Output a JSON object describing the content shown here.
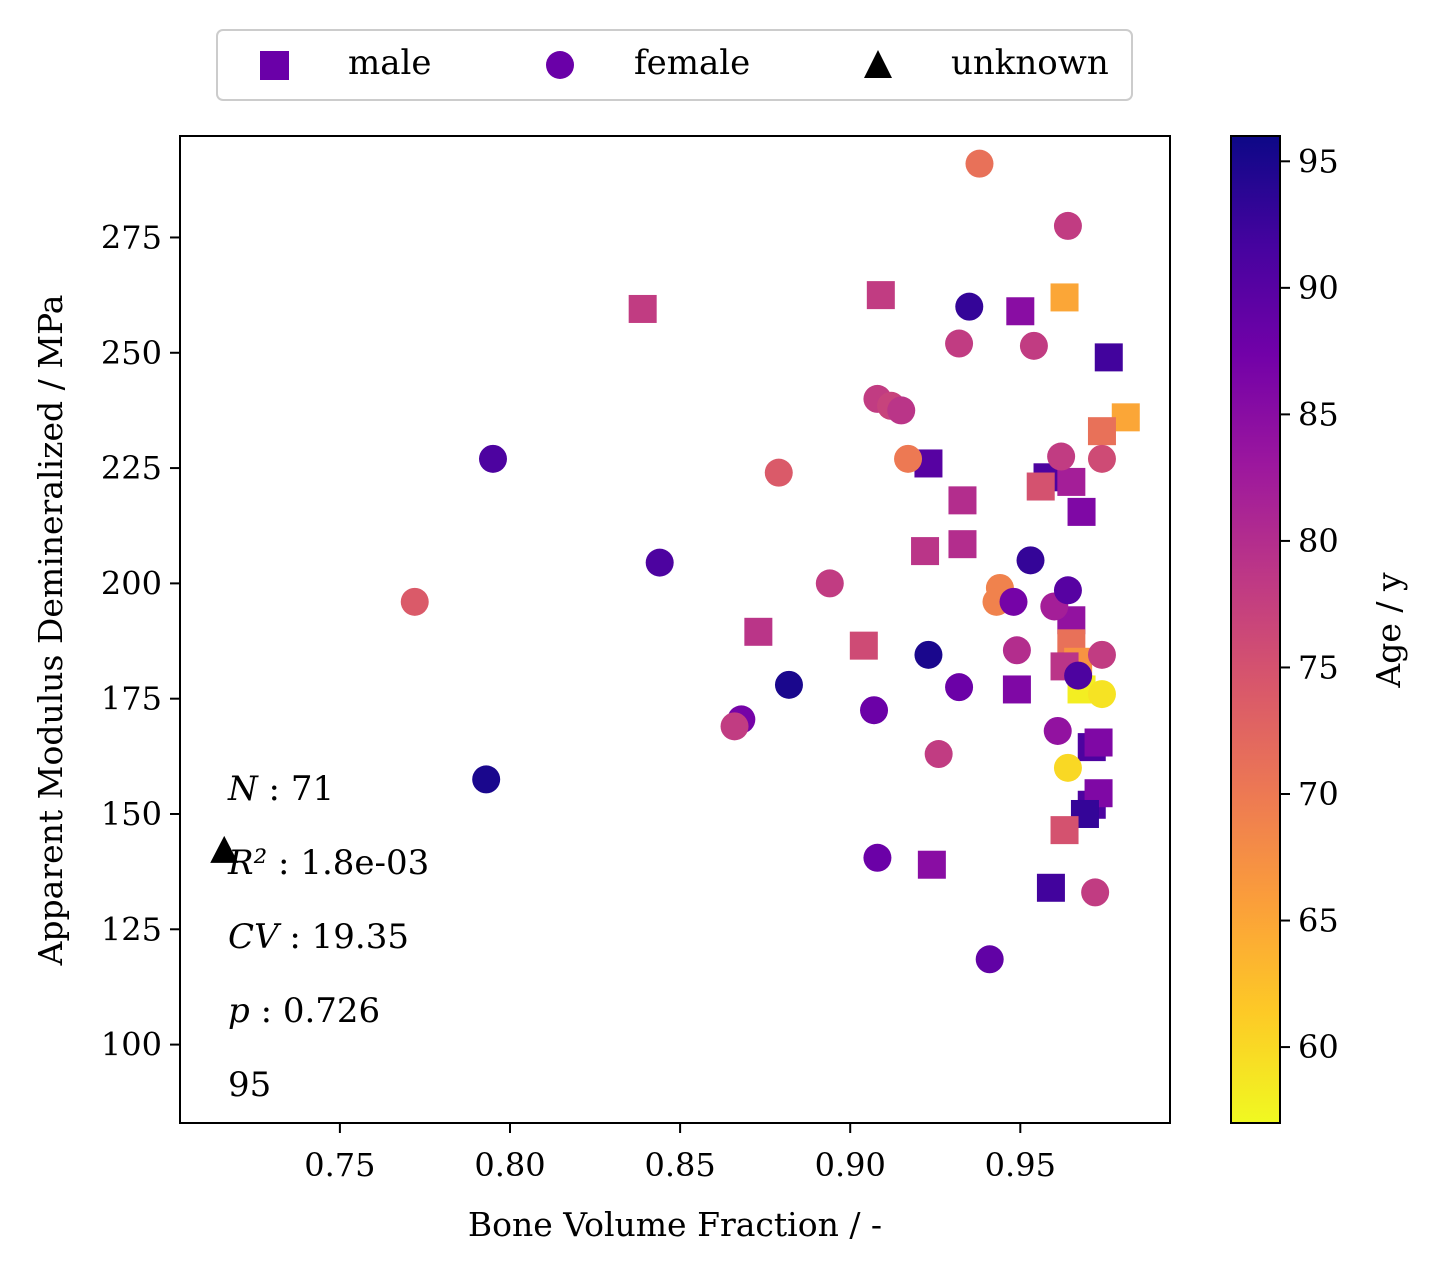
{
  "chart_data": {
    "type": "scatter",
    "title": "",
    "xlabel": "Bone Volume Fraction / -",
    "ylabel": "Apparent Modulus Demineralized / MPa",
    "xlim": [
      0.703,
      0.994
    ],
    "ylim": [
      83,
      297
    ],
    "x_ticks": [
      0.75,
      0.8,
      0.85,
      0.9,
      0.95
    ],
    "x_tick_labels": [
      "0.75",
      "0.80",
      "0.85",
      "0.90",
      "0.95"
    ],
    "y_ticks": [
      100,
      125,
      150,
      175,
      200,
      225,
      250,
      275
    ],
    "y_tick_labels": [
      "100",
      "125",
      "150",
      "175",
      "200",
      "225",
      "250",
      "275"
    ],
    "grid": false,
    "legend": {
      "placement": "top-center, outside plot",
      "entries": [
        {
          "label": "male",
          "marker": "square",
          "color": "#6a00a8"
        },
        {
          "label": "female",
          "marker": "circle",
          "color": "#6a00a8"
        },
        {
          "label": "unknown",
          "marker": "triangle",
          "color": "#000000"
        }
      ]
    },
    "colorbar": {
      "label": "Age / y",
      "colormap": "plasma",
      "range": [
        57,
        96
      ],
      "ticks": [
        60,
        65,
        70,
        75,
        80,
        85,
        90,
        95
      ],
      "tick_labels": [
        "60",
        "65",
        "70",
        "75",
        "80",
        "85",
        "90",
        "95"
      ],
      "stops": [
        "#f0f921",
        "#fdca26",
        "#fb9f3a",
        "#ed7953",
        "#d8576b",
        "#bd3786",
        "#9c179e",
        "#7201a8",
        "#46039f",
        "#0d0887"
      ]
    },
    "annotations": [
      {
        "label": "N",
        "sep": " : ",
        "value": "71"
      },
      {
        "label": "R²",
        "sep": " : ",
        "value": "1.8e-03"
      },
      {
        "label": "CV",
        "sep": " : ",
        "value": "19.35"
      },
      {
        "label": "p",
        "sep": " : ",
        "value": "0.726"
      },
      {
        "label": "",
        "sep": "",
        "value": "95"
      }
    ],
    "points": [
      {
        "x": 0.839,
        "y": 259.5,
        "age": 78,
        "group": "male"
      },
      {
        "x": 0.909,
        "y": 262.5,
        "age": 78,
        "group": "male"
      },
      {
        "x": 0.95,
        "y": 259,
        "age": 85,
        "group": "male"
      },
      {
        "x": 0.963,
        "y": 262,
        "age": 65,
        "group": "male"
      },
      {
        "x": 0.976,
        "y": 249,
        "age": 92,
        "group": "male"
      },
      {
        "x": 0.981,
        "y": 236,
        "age": 65,
        "group": "male"
      },
      {
        "x": 0.974,
        "y": 233,
        "age": 71,
        "group": "male"
      },
      {
        "x": 0.923,
        "y": 226,
        "age": 90,
        "group": "male"
      },
      {
        "x": 0.958,
        "y": 223,
        "age": 91,
        "group": "male"
      },
      {
        "x": 0.965,
        "y": 222,
        "age": 82,
        "group": "male"
      },
      {
        "x": 0.956,
        "y": 221,
        "age": 75,
        "group": "male"
      },
      {
        "x": 0.933,
        "y": 218,
        "age": 80,
        "group": "male"
      },
      {
        "x": 0.968,
        "y": 215.5,
        "age": 86,
        "group": "male"
      },
      {
        "x": 0.933,
        "y": 208.5,
        "age": 80,
        "group": "male"
      },
      {
        "x": 0.922,
        "y": 207,
        "age": 79,
        "group": "male"
      },
      {
        "x": 0.965,
        "y": 192,
        "age": 84,
        "group": "male"
      },
      {
        "x": 0.873,
        "y": 189.5,
        "age": 79,
        "group": "male"
      },
      {
        "x": 0.904,
        "y": 186.5,
        "age": 76,
        "group": "male"
      },
      {
        "x": 0.965,
        "y": 187,
        "age": 71,
        "group": "male"
      },
      {
        "x": 0.967,
        "y": 183,
        "age": 67,
        "group": "male"
      },
      {
        "x": 0.963,
        "y": 182,
        "age": 79,
        "group": "male"
      },
      {
        "x": 0.949,
        "y": 177,
        "age": 86,
        "group": "male"
      },
      {
        "x": 0.968,
        "y": 177,
        "age": 58,
        "group": "male"
      },
      {
        "x": 0.971,
        "y": 164.5,
        "age": 91,
        "group": "male"
      },
      {
        "x": 0.973,
        "y": 165.5,
        "age": 86,
        "group": "male"
      },
      {
        "x": 0.971,
        "y": 152,
        "age": 91,
        "group": "male"
      },
      {
        "x": 0.973,
        "y": 154.5,
        "age": 86,
        "group": "male"
      },
      {
        "x": 0.969,
        "y": 150,
        "age": 93,
        "group": "male"
      },
      {
        "x": 0.963,
        "y": 146.5,
        "age": 75,
        "group": "male"
      },
      {
        "x": 0.924,
        "y": 139,
        "age": 85,
        "group": "male"
      },
      {
        "x": 0.959,
        "y": 134,
        "age": 92,
        "group": "male"
      },
      {
        "x": 0.938,
        "y": 291,
        "age": 71,
        "group": "female"
      },
      {
        "x": 0.964,
        "y": 277.5,
        "age": 78,
        "group": "female"
      },
      {
        "x": 0.935,
        "y": 260,
        "age": 93,
        "group": "female"
      },
      {
        "x": 0.932,
        "y": 252,
        "age": 78,
        "group": "female"
      },
      {
        "x": 0.954,
        "y": 251.5,
        "age": 78,
        "group": "female"
      },
      {
        "x": 0.908,
        "y": 240,
        "age": 78,
        "group": "female"
      },
      {
        "x": 0.912,
        "y": 238.5,
        "age": 77,
        "group": "female"
      },
      {
        "x": 0.915,
        "y": 237.5,
        "age": 79,
        "group": "female"
      },
      {
        "x": 0.795,
        "y": 227,
        "age": 91,
        "group": "female"
      },
      {
        "x": 0.917,
        "y": 227,
        "age": 70,
        "group": "female"
      },
      {
        "x": 0.962,
        "y": 227.5,
        "age": 78,
        "group": "female"
      },
      {
        "x": 0.974,
        "y": 227,
        "age": 76,
        "group": "female"
      },
      {
        "x": 0.879,
        "y": 224,
        "age": 74,
        "group": "female"
      },
      {
        "x": 0.844,
        "y": 204.5,
        "age": 91,
        "group": "female"
      },
      {
        "x": 0.953,
        "y": 205,
        "age": 93,
        "group": "female"
      },
      {
        "x": 0.772,
        "y": 196,
        "age": 74,
        "group": "female"
      },
      {
        "x": 0.894,
        "y": 200,
        "age": 78,
        "group": "female"
      },
      {
        "x": 0.944,
        "y": 199,
        "age": 69,
        "group": "female"
      },
      {
        "x": 0.943,
        "y": 196,
        "age": 69,
        "group": "female"
      },
      {
        "x": 0.948,
        "y": 196,
        "age": 87,
        "group": "female"
      },
      {
        "x": 0.96,
        "y": 195,
        "age": 82,
        "group": "female"
      },
      {
        "x": 0.964,
        "y": 198.5,
        "age": 90,
        "group": "female"
      },
      {
        "x": 0.923,
        "y": 184.5,
        "age": 95,
        "group": "female"
      },
      {
        "x": 0.949,
        "y": 185.5,
        "age": 80,
        "group": "female"
      },
      {
        "x": 0.974,
        "y": 184.5,
        "age": 78,
        "group": "female"
      },
      {
        "x": 0.882,
        "y": 178,
        "age": 95,
        "group": "female"
      },
      {
        "x": 0.932,
        "y": 177.5,
        "age": 88,
        "group": "female"
      },
      {
        "x": 0.967,
        "y": 180,
        "age": 91,
        "group": "female"
      },
      {
        "x": 0.974,
        "y": 176,
        "age": 59,
        "group": "female"
      },
      {
        "x": 0.907,
        "y": 172.5,
        "age": 88,
        "group": "female"
      },
      {
        "x": 0.868,
        "y": 170.5,
        "age": 87,
        "group": "female"
      },
      {
        "x": 0.866,
        "y": 169,
        "age": 78,
        "group": "female"
      },
      {
        "x": 0.961,
        "y": 168,
        "age": 84,
        "group": "female"
      },
      {
        "x": 0.926,
        "y": 163,
        "age": 78,
        "group": "female"
      },
      {
        "x": 0.964,
        "y": 160,
        "age": 60,
        "group": "female"
      },
      {
        "x": 0.793,
        "y": 157.5,
        "age": 95,
        "group": "female"
      },
      {
        "x": 0.908,
        "y": 140.5,
        "age": 88,
        "group": "female"
      },
      {
        "x": 0.972,
        "y": 133,
        "age": 78,
        "group": "female"
      },
      {
        "x": 0.941,
        "y": 118.5,
        "age": 89,
        "group": "female"
      },
      {
        "x": 0.716,
        "y": 142,
        "age": null,
        "group": "unknown"
      }
    ]
  }
}
